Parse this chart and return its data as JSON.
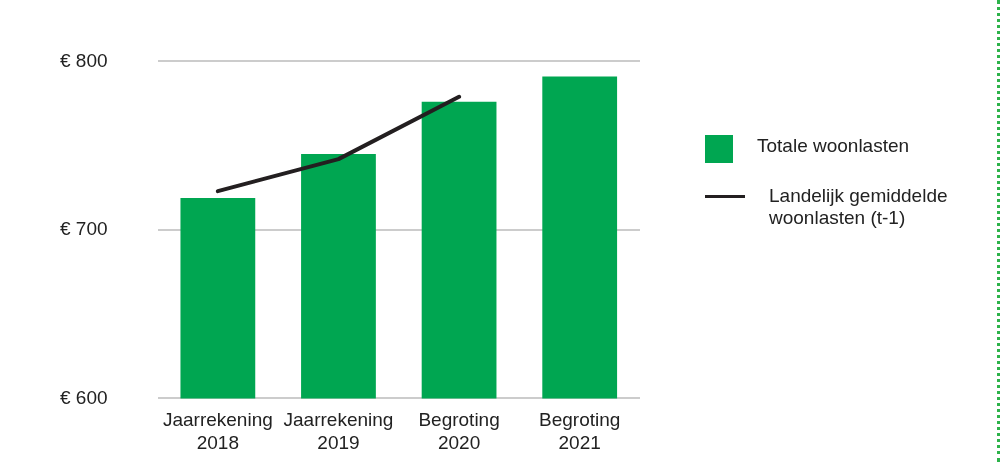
{
  "chart_data": {
    "type": "bar",
    "categories": [
      "Jaarrekening 2018",
      "Jaarrekening 2019",
      "Begroting 2020",
      "Begroting 2021"
    ],
    "series": [
      {
        "name": "Totale woonlasten",
        "color": "#00a651",
        "values": [
          719,
          745,
          776,
          791
        ]
      },
      {
        "name": "Landelijk gemiddelde woonlasten (t-1)",
        "type": "line",
        "color": "#231f20",
        "values": [
          723,
          742,
          779,
          null
        ]
      }
    ],
    "ylim": [
      600,
      800
    ],
    "yticks": [
      {
        "value": 600,
        "label": "€ 600"
      },
      {
        "value": 700,
        "label": "€ 700"
      },
      {
        "value": 800,
        "label": "€ 800"
      }
    ],
    "grid": "y",
    "legend": "right",
    "marker": "none"
  }
}
